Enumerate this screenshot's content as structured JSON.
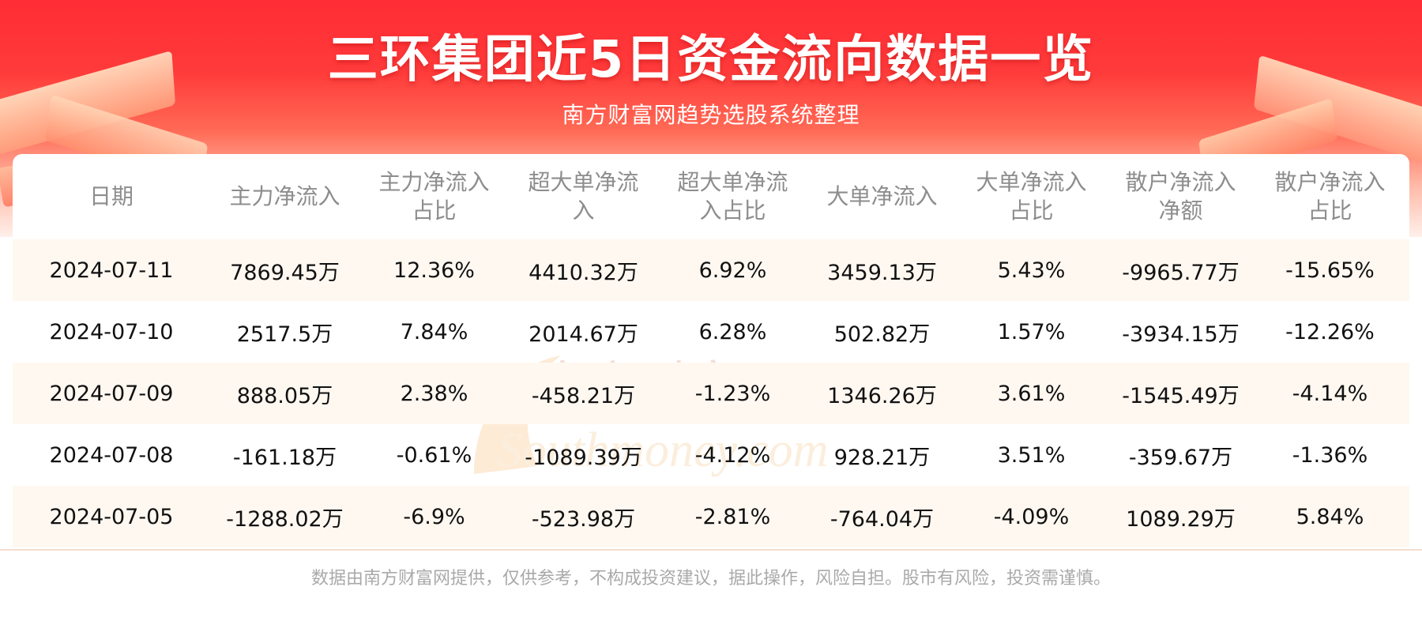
{
  "title": "三环集团近5日资金流向数据一览",
  "subtitle": "南方财富网趋势选股系统整理",
  "watermark": {
    "cn": "南方财富网",
    "en": "Southmoney.com"
  },
  "table": {
    "headers": [
      [
        "日期"
      ],
      [
        "主力净流入"
      ],
      [
        "主力净流入",
        "占比"
      ],
      [
        "超大单净流",
        "入"
      ],
      [
        "超大单净流",
        "入占比"
      ],
      [
        "大单净流入"
      ],
      [
        "大单净流入",
        "占比"
      ],
      [
        "散户净流入",
        "净额"
      ],
      [
        "散户净流入",
        "占比"
      ]
    ],
    "rows": [
      [
        "2024-07-11",
        "7869.45万",
        "12.36%",
        "4410.32万",
        "6.92%",
        "3459.13万",
        "5.43%",
        "-9965.77万",
        "-15.65%"
      ],
      [
        "2024-07-10",
        "2517.5万",
        "7.84%",
        "2014.67万",
        "6.28%",
        "502.82万",
        "1.57%",
        "-3934.15万",
        "-12.26%"
      ],
      [
        "2024-07-09",
        "888.05万",
        "2.38%",
        "-458.21万",
        "-1.23%",
        "1346.26万",
        "3.61%",
        "-1545.49万",
        "-4.14%"
      ],
      [
        "2024-07-08",
        "-161.18万",
        "-0.61%",
        "-1089.39万",
        "-4.12%",
        "928.21万",
        "3.51%",
        "-359.67万",
        "-1.36%"
      ],
      [
        "2024-07-05",
        "-1288.02万",
        "-6.9%",
        "-523.98万",
        "-2.81%",
        "-764.04万",
        "-4.09%",
        "1089.29万",
        "5.84%"
      ]
    ]
  },
  "footer": "数据由南方财富网提供，仅供参考，不构成投资建议，据此操作，风险自担。股市有风险，投资需谨慎。",
  "colors": {
    "brand_red": "#ff2d35",
    "row_stripe": "#fff8f1",
    "header_text": "#8d8d8d",
    "body_text": "#111111",
    "footer_text": "#a9a9a9"
  }
}
